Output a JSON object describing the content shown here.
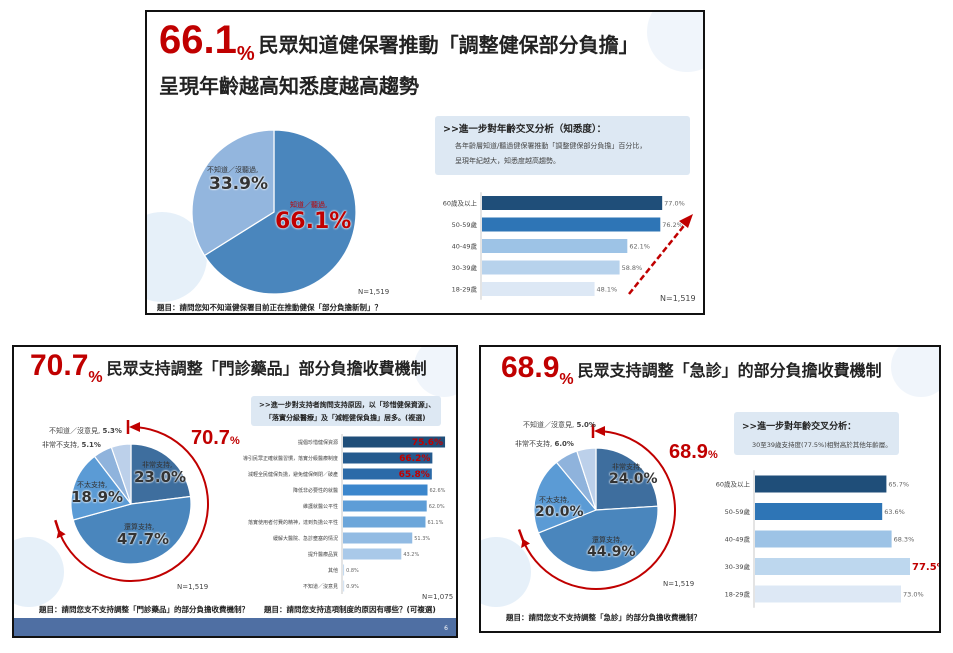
{
  "slides": [
    {
      "headline_value": "66.1",
      "headline_unit": "%",
      "title_line1": "民眾知道健保署推動「調整健保部分負擔」",
      "title_line2": "呈現年齡越高知悉度越高趨勢",
      "box_title": ">>進一步對年齡交叉分析（知悉度）：",
      "box_text1": "各年齡層知道/聽過健保署推動「調整健保部分負擔」百分比，",
      "box_text2": "呈現年紀越大，知悉度越高趨勢。",
      "pie_n": "N=1,519",
      "bar_n": "N=1,519",
      "question": "題目：請問您知不知道健保署目前正在推動健保「部分負擔新制」？"
    },
    {
      "headline_value": "70.7",
      "headline_unit": "%",
      "title_line1": "民眾支持調整「門診藥品」部分負擔收費機制",
      "arc_value": "70.7",
      "arc_unit": "%",
      "box_text1": ">>進一步對支持者詢問支持原因，以「珍惜健保資源」、",
      "box_text2": "「落實分級醫療」及「減輕健保負擔」居多。(複選)",
      "pie_n": "N=1,519",
      "bar_n": "N=1,075",
      "question_left": "題目：請問您支不支持調整「門診藥品」的部分負擔收費機制？",
      "question_right": "題目：請問您支持這項制度的原因有哪些？(可複選)",
      "page_number": "6"
    },
    {
      "headline_value": "68.9",
      "headline_unit": "%",
      "title_line1": "民眾支持調整「急診」的部分負擔收費機制",
      "arc_value": "68.9",
      "arc_unit": "%",
      "box_title": ">>進一步對年齡交叉分析：",
      "box_text1": "30至39歲支持度(77.5%)相對高於其他年齡層。",
      "pie_n": "N=1,519",
      "question": "題目：請問您支不支持調整「急診」的部分負擔收費機制？"
    }
  ],
  "chart_data": [
    {
      "type": "pie",
      "categories": [
        "知道／聽過",
        "不知道／沒聽過"
      ],
      "values": [
        66.1,
        33.9
      ],
      "labels": [
        "知道／聽過,",
        "不知道／沒聽過,"
      ],
      "value_labels": [
        "66.1%",
        "33.9%"
      ],
      "colors": [
        "#4a86bd",
        "#93b6de"
      ]
    },
    {
      "type": "bar",
      "orientation": "horizontal",
      "categories": [
        "60歲及以上",
        "50-59歲",
        "40-49歲",
        "30-39歲",
        "18-29歲"
      ],
      "values": [
        77.0,
        76.2,
        62.1,
        58.8,
        48.1
      ],
      "value_labels": [
        "77.0%",
        "76.2%",
        "62.1%",
        "58.8%",
        "48.1%"
      ],
      "colors": [
        "#1f4e79",
        "#2e75b6",
        "#9dc3e6",
        "#b7d2ec",
        "#dde8f5"
      ],
      "trend_arrow": "up"
    },
    {
      "type": "pie",
      "categories": [
        "非常支持",
        "還算支持",
        "不太支持",
        "非常不支持",
        "不知道／沒意見"
      ],
      "values": [
        23.0,
        47.7,
        18.9,
        5.1,
        5.3
      ],
      "labels": [
        "非常支持,",
        "還算支持,",
        "不太支持,",
        "非常不支持,",
        "不知道／沒意見,"
      ],
      "value_labels": [
        "23.0%",
        "47.7%",
        "18.9%",
        "5.1%",
        "5.3%"
      ],
      "colors": [
        "#3e6e9e",
        "#4a86bd",
        "#5b9bd5",
        "#8fb3dc",
        "#bcd0ea"
      ]
    },
    {
      "type": "bar",
      "orientation": "horizontal",
      "categories": [
        "提倡珍惜健保資源",
        "導引民眾正確就醫習慣，落實分級醫療制度",
        "減輕全民健保負擔，避免健保倒閉／破產",
        "降低非必要性的就醫",
        "維護就醫公平性",
        "落實使用者付費的精神，達到負擔公平性",
        "緩解大醫院、急診壅塞的情況",
        "提升醫療品質",
        "其他",
        "不知道／沒意見"
      ],
      "values": [
        75.6,
        66.2,
        65.8,
        62.6,
        62.0,
        61.1,
        51.3,
        43.2,
        0.8,
        0.9
      ],
      "value_labels": [
        "75.6%",
        "66.2%",
        "65.8%",
        "62.6%",
        "62.0%",
        "61.1%",
        "51.3%",
        "43.2%",
        "0.8%",
        "0.9%"
      ],
      "highlighted": [
        true,
        true,
        true,
        false,
        false,
        false,
        false,
        false,
        false,
        false
      ],
      "colors": [
        "#1f4e79",
        "#245a8e",
        "#2b6aa8",
        "#3b86cc",
        "#5d9dd7",
        "#6ca6da",
        "#92bbe3",
        "#a9c9e9",
        "#c5dbf0",
        "#d5e4f4"
      ]
    },
    {
      "type": "pie",
      "categories": [
        "非常支持",
        "還算支持",
        "不太支持",
        "非常不支持",
        "不知道／沒意見"
      ],
      "values": [
        24.0,
        44.9,
        20.0,
        6.0,
        5.0
      ],
      "labels": [
        "非常支持,",
        "還算支持,",
        "不太支持,",
        "非常不支持,",
        "不知道／沒意見,"
      ],
      "value_labels": [
        "24.0%",
        "44.9%",
        "20.0%",
        "6.0%",
        "5.0%"
      ],
      "colors": [
        "#3e6e9e",
        "#4a86bd",
        "#5b9bd5",
        "#8fb3dc",
        "#bcd0ea"
      ]
    },
    {
      "type": "bar",
      "orientation": "horizontal",
      "categories": [
        "60歲及以上",
        "50-59歲",
        "40-49歲",
        "30-39歲",
        "18-29歲"
      ],
      "values": [
        65.7,
        63.6,
        68.3,
        77.5,
        73.0
      ],
      "value_labels": [
        "65.7%",
        "63.6%",
        "68.3%",
        "77.5%",
        "73.0%"
      ],
      "highlighted": [
        false,
        false,
        false,
        true,
        false
      ],
      "colors": [
        "#1f4e79",
        "#2e75b6",
        "#9dc3e6",
        "#bdd7ee",
        "#dde8f5"
      ]
    }
  ]
}
